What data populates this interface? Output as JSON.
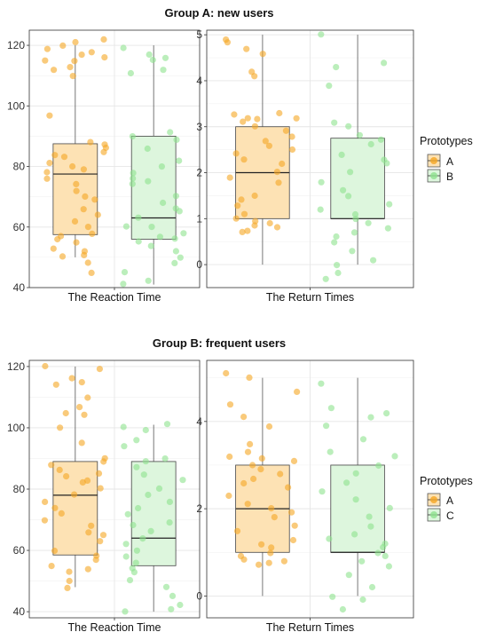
{
  "colors": {
    "A": "#f5a623",
    "A_fill": "#fde2b4",
    "B": "#8ee28e",
    "B_fill": "#ddf6dd",
    "C": "#8ee28e",
    "C_fill": "#ddf6dd"
  },
  "chart_data": [
    {
      "type": "boxplot",
      "title": "Group A: new users",
      "legend": {
        "title": "Prototypes",
        "entries": [
          "A",
          "B"
        ],
        "placement": "right"
      },
      "panels": [
        {
          "xlabel": "The Reaction Time",
          "ylim": [
            40,
            125
          ],
          "yticks": [
            40,
            60,
            80,
            100,
            120
          ],
          "boxes": {
            "A": {
              "min": 50,
              "q1": 57.5,
              "median": 77.5,
              "q3": 87.5,
              "max": 120
            },
            "B": {
              "min": 41,
              "q1": 56,
              "median": 63,
              "q3": 90,
              "max": 120
            }
          },
          "points": {
            "A": [
              115,
              117,
              118,
              119,
              120,
              121,
              122,
              110,
              112,
              113,
              115,
              116,
              84,
              85,
              86,
              83,
              80,
              81,
              79,
              78,
              76,
              70,
              72,
              66,
              60,
              62,
              58,
              57,
              55,
              56,
              52,
              50,
              51,
              53,
              45,
              48,
              97,
              88,
              87,
              74,
              69,
              64
            ],
            "B": [
              119,
              117,
              116,
              112,
              111,
              115,
              91,
              90,
              89,
              86,
              82,
              80,
              78,
              76,
              75,
              74,
              70,
              68,
              66,
              65,
              63,
              60,
              58,
              56,
              55,
              54,
              52,
              50,
              48,
              45,
              42,
              41,
              60,
              57
            ]
          }
        },
        {
          "xlabel": "The Return Times",
          "ylim": [
            -0.5,
            5.1
          ],
          "yticks": [
            0,
            1,
            2,
            3,
            4,
            5
          ],
          "boxes": {
            "A": {
              "min": 0,
              "q1": 1,
              "median": 2,
              "q3": 3,
              "max": 5
            },
            "B": {
              "min": 0,
              "q1": 1,
              "median": 1,
              "q3": 2.75,
              "max": 5
            }
          },
          "points": {
            "A": [
              4.9,
              4.85,
              4.7,
              4.6,
              4.2,
              4.1,
              3.3,
              3.25,
              3.2,
              3.2,
              3.15,
              3.1,
              3.0,
              2.9,
              2.8,
              2.7,
              2.6,
              2.5,
              2.3,
              2.2,
              2.0,
              1.9,
              1.8,
              1.4,
              1.3,
              1.1,
              1.0,
              0.95,
              0.9,
              0.85,
              0.8,
              0.75,
              0.7,
              1.5,
              2.4
            ],
            "B": [
              5.0,
              4.4,
              4.3,
              3.9,
              3.1,
              3.0,
              2.8,
              2.7,
              2.6,
              2.4,
              2.3,
              2.2,
              2.0,
              1.8,
              1.6,
              1.5,
              1.2,
              1.1,
              1.0,
              0.9,
              0.8,
              0.7,
              0.5,
              0.3,
              0.1,
              0.0,
              -0.2,
              -0.3,
              1.3,
              0.6
            ]
          }
        }
      ]
    },
    {
      "type": "boxplot",
      "title": "Group B: frequent users",
      "legend": {
        "title": "Prototypes",
        "entries": [
          "A",
          "C"
        ],
        "placement": "right"
      },
      "panels": [
        {
          "xlabel": "The Reaction Time",
          "ylim": [
            38,
            122
          ],
          "yticks": [
            40,
            60,
            80,
            100,
            120
          ],
          "boxes": {
            "A": {
              "min": 48,
              "q1": 58.5,
              "median": 78,
              "q3": 89,
              "max": 120
            },
            "C": {
              "min": 40,
              "q1": 55,
              "median": 64,
              "q3": 89,
              "max": 101
            }
          },
          "points": {
            "A": [
              120,
              119,
              116,
              115,
              114,
              110,
              107,
              104,
              100,
              95,
              90,
              88,
              86,
              85,
              84,
              82,
              80,
              78,
              76,
              74,
              70,
              68,
              66,
              63,
              60,
              58,
              57,
              55,
              54,
              53,
              50,
              48,
              105,
              89,
              83,
              72,
              65
            ],
            "C": [
              100,
              101,
              99,
              96,
              94,
              90,
              89,
              85,
              83,
              80,
              78,
              76,
              74,
              72,
              69,
              66,
              64,
              62,
              60,
              58,
              56,
              54,
              53,
              50,
              48,
              45,
              42,
              41,
              40,
              87,
              68
            ]
          }
        },
        {
          "xlabel": "The Return Times",
          "ylim": [
            -0.5,
            5.4
          ],
          "yticks": [
            0,
            2,
            4
          ],
          "boxes": {
            "A": {
              "min": 0,
              "q1": 1,
              "median": 2,
              "q3": 3,
              "max": 5
            },
            "C": {
              "min": 0,
              "q1": 1,
              "median": 1,
              "q3": 3,
              "max": 5
            }
          },
          "points": {
            "A": [
              5.1,
              5.0,
              4.7,
              4.4,
              4.1,
              3.9,
              3.5,
              3.3,
              3.2,
              3.15,
              3.1,
              3.0,
              2.9,
              2.8,
              2.6,
              2.5,
              2.3,
              2.1,
              2.0,
              1.9,
              1.8,
              1.5,
              1.3,
              1.2,
              1.1,
              1.0,
              0.9,
              0.85,
              0.8,
              0.75,
              0.7,
              2.7,
              1.6
            ],
            "C": [
              4.85,
              4.3,
              4.2,
              4.1,
              3.9,
              3.6,
              3.3,
              3.2,
              3.0,
              2.8,
              2.6,
              2.4,
              2.2,
              2.0,
              1.8,
              1.6,
              1.4,
              1.2,
              1.1,
              1.0,
              0.9,
              0.8,
              0.5,
              0.2,
              0.0,
              -0.1,
              -0.3,
              0.7,
              1.3
            ]
          }
        }
      ]
    }
  ]
}
